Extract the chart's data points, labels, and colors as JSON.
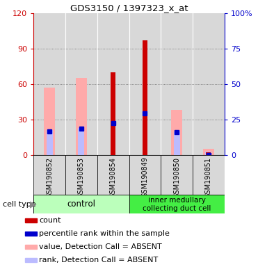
{
  "title": "GDS3150 / 1397323_x_at",
  "samples": [
    "GSM190852",
    "GSM190853",
    "GSM190854",
    "GSM190849",
    "GSM190850",
    "GSM190851"
  ],
  "groups": [
    {
      "name": "control",
      "color": "#bbffbb"
    },
    {
      "name": "inner medullary\ncollecting duct cell",
      "color": "#44ee44"
    }
  ],
  "count_values": [
    0,
    0,
    70,
    97,
    0,
    2
  ],
  "percentile_values": [
    20,
    22,
    27,
    35,
    19,
    0
  ],
  "value_absent": [
    57,
    65,
    0,
    0,
    38,
    5
  ],
  "rank_absent": [
    21,
    23,
    0,
    0,
    20,
    3
  ],
  "left_ylim": [
    0,
    120
  ],
  "right_ylim": [
    0,
    100
  ],
  "left_yticks": [
    0,
    30,
    60,
    90,
    120
  ],
  "right_yticks": [
    0,
    25,
    50,
    75,
    100
  ],
  "right_yticklabels": [
    "0",
    "25",
    "50",
    "75",
    "100%"
  ],
  "count_color": "#cc0000",
  "percentile_color": "#0000cc",
  "value_absent_color": "#ffaaaa",
  "rank_absent_color": "#bbbbff",
  "col_bg_color": "#d8d8d8",
  "left_axis_color": "#cc0000",
  "right_axis_color": "#0000cc",
  "pink_bar_width": 0.35,
  "blue_bar_width": 0.2,
  "red_bar_width": 0.15,
  "label_fontsize": 7,
  "legend_fontsize": 8
}
